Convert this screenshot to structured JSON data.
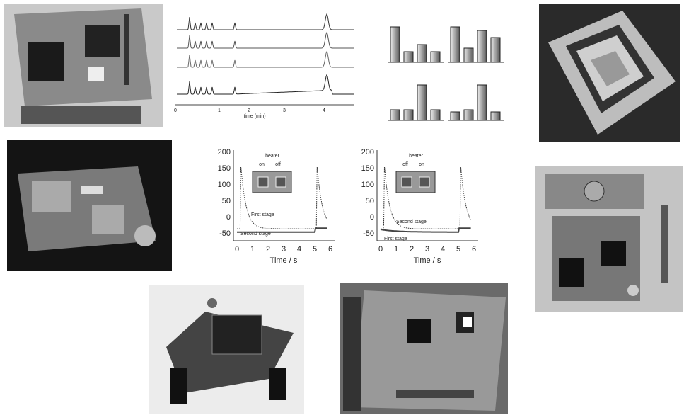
{
  "chromatogram": {
    "x_ticks": [
      "0",
      "1",
      "2",
      "3",
      "4"
    ],
    "x_label": "time (min)"
  },
  "response_charts": [
    {
      "y_ticks": [
        "200",
        "150",
        "100",
        "50",
        "0",
        "-50"
      ],
      "x_ticks": [
        "0",
        "1",
        "2",
        "3",
        "4",
        "5",
        "6"
      ],
      "x_label": "Time / s",
      "inset": {
        "title": "heater",
        "labels": [
          "on",
          "off"
        ]
      },
      "annotations": [
        "First stage",
        "Second stage"
      ]
    },
    {
      "y_ticks": [
        "200",
        "150",
        "100",
        "50",
        "0",
        "-50"
      ],
      "x_ticks": [
        "0",
        "1",
        "2",
        "3",
        "4",
        "5",
        "6"
      ],
      "x_label": "Time / s",
      "inset": {
        "title": "heater",
        "labels": [
          "off",
          "on"
        ]
      },
      "annotations": [
        "Second stage",
        "First stage"
      ]
    }
  ]
}
